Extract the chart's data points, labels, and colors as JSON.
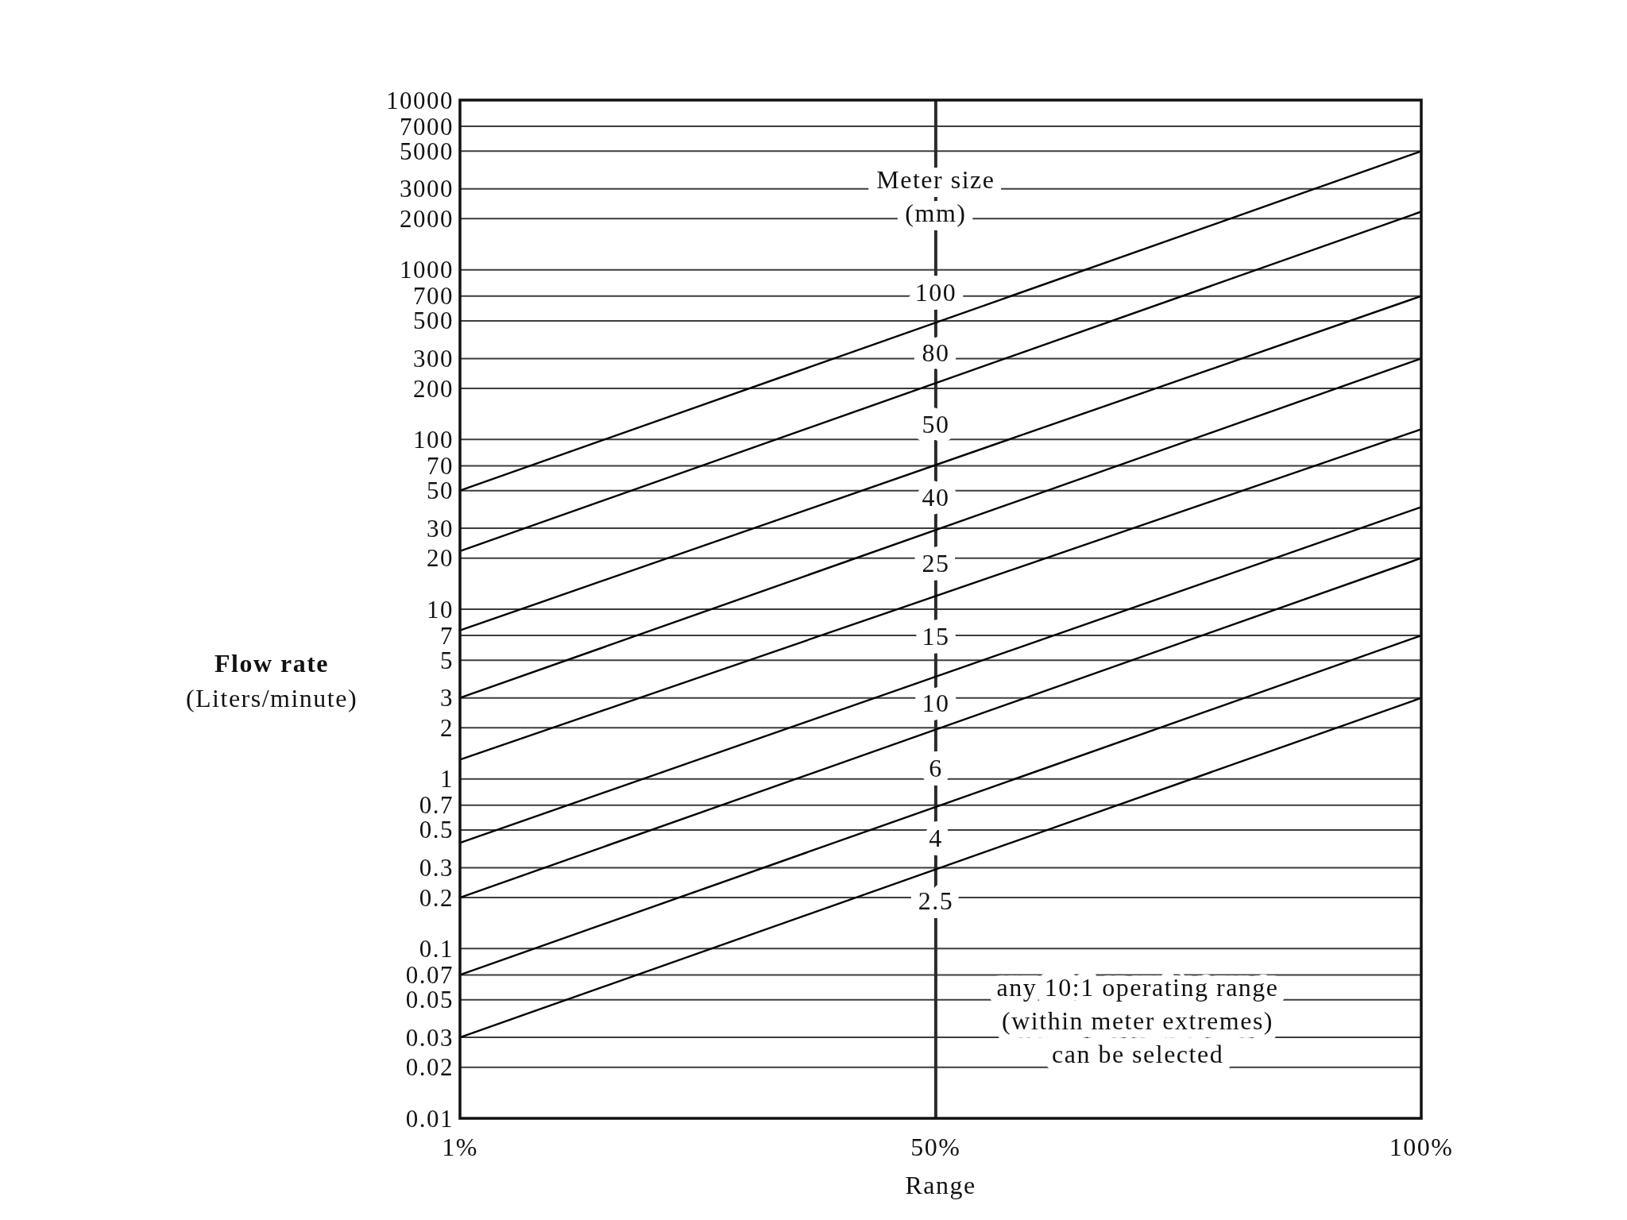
{
  "chart_data": {
    "type": "line",
    "xlabel": "Range",
    "ylabel": "Flow rate\n(Liters/minute)",
    "log": "y",
    "grid": "y",
    "line_style": "solid",
    "xlim": [
      1,
      100
    ],
    "xticks": [
      {
        "value": 1,
        "label": "1%"
      },
      {
        "value": 50,
        "label": "50%"
      },
      {
        "value": 100,
        "label": "100%"
      }
    ],
    "ylim": [
      0.01,
      10000
    ],
    "yticks": [
      0.01,
      0.02,
      0.03,
      0.05,
      0.07,
      0.1,
      0.2,
      0.3,
      0.5,
      0.7,
      1,
      2,
      3,
      5,
      7,
      10,
      20,
      30,
      50,
      70,
      100,
      200,
      300,
      500,
      700,
      1000,
      2000,
      3000,
      5000,
      7000,
      10000
    ],
    "ref_lines": [
      {
        "axis": "x",
        "value": 50
      }
    ],
    "x": [
      1,
      100
    ],
    "series": [
      {
        "color": "#000000",
        "values": [
          50,
          5000
        ]
      },
      {
        "color": "#000000",
        "values": [
          22,
          2200
        ]
      },
      {
        "color": "#000000",
        "values": [
          7.5,
          700
        ]
      },
      {
        "color": "#000000",
        "values": [
          3,
          300
        ]
      },
      {
        "color": "#000000",
        "values": [
          1.3,
          115
        ]
      },
      {
        "color": "#000000",
        "values": [
          0.42,
          40
        ]
      },
      {
        "color": "#000000",
        "values": [
          0.2,
          20
        ]
      },
      {
        "color": "#000000",
        "values": [
          0.07,
          7
        ]
      },
      {
        "color": "#000000",
        "values": [
          0.03,
          3
        ]
      }
    ],
    "annotations": [
      "Meter size\n(mm)",
      "100",
      "80",
      "50",
      "40",
      "25",
      "15",
      "10",
      "6",
      "4",
      "2.5",
      "any 10:1 operating range\n(within meter extremes)\ncan be selected"
    ]
  }
}
